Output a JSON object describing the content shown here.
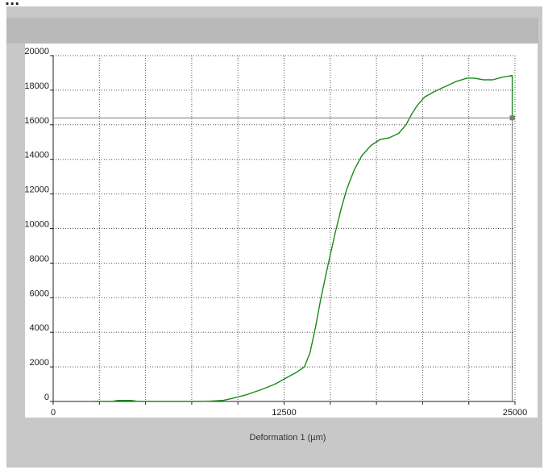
{
  "heading_fragment": "...",
  "chart_data": {
    "type": "line",
    "title": "",
    "xlabel": "Deformation 1 (µm)",
    "ylabel": "",
    "xlim": [
      0,
      25000
    ],
    "ylim": [
      0,
      20000
    ],
    "x_ticks": [
      0,
      12500,
      25000
    ],
    "x_grid": [
      0,
      2500,
      5000,
      7500,
      10000,
      12500,
      15000,
      17500,
      20000,
      22500,
      25000
    ],
    "y_ticks": [
      0,
      2000,
      4000,
      6000,
      8000,
      10000,
      12000,
      14000,
      16000,
      18000,
      20000
    ],
    "grid": true,
    "cursor": {
      "x": 24850,
      "y": 16400
    },
    "colors": {
      "series": "#1a8a1a",
      "cursor": "#7a7a7a",
      "background": "#ffffff",
      "frame": "#c8c8c8"
    },
    "series": [
      {
        "x": [
          2200,
          3200,
          3500,
          3900,
          4200,
          4600,
          7900,
          8500,
          9200,
          9800,
          10500,
          11300,
          12000,
          12600,
          13200,
          13600,
          13900,
          14200,
          14500,
          14900,
          15300,
          15600,
          15900,
          16300,
          16700,
          17200,
          17700,
          18200,
          18700,
          19100,
          19400,
          19700,
          20100,
          20600,
          21200,
          21800,
          22400,
          22800,
          23300,
          23800,
          24300,
          24850,
          24850
        ],
        "y": [
          0,
          0,
          60,
          60,
          60,
          0,
          0,
          20,
          60,
          200,
          400,
          700,
          1000,
          1350,
          1700,
          2000,
          2800,
          4300,
          6000,
          8000,
          9900,
          11200,
          12300,
          13400,
          14200,
          14800,
          15150,
          15250,
          15500,
          16000,
          16600,
          17100,
          17600,
          17900,
          18200,
          18500,
          18700,
          18700,
          18600,
          18600,
          18750,
          18850,
          16400
        ]
      }
    ]
  }
}
